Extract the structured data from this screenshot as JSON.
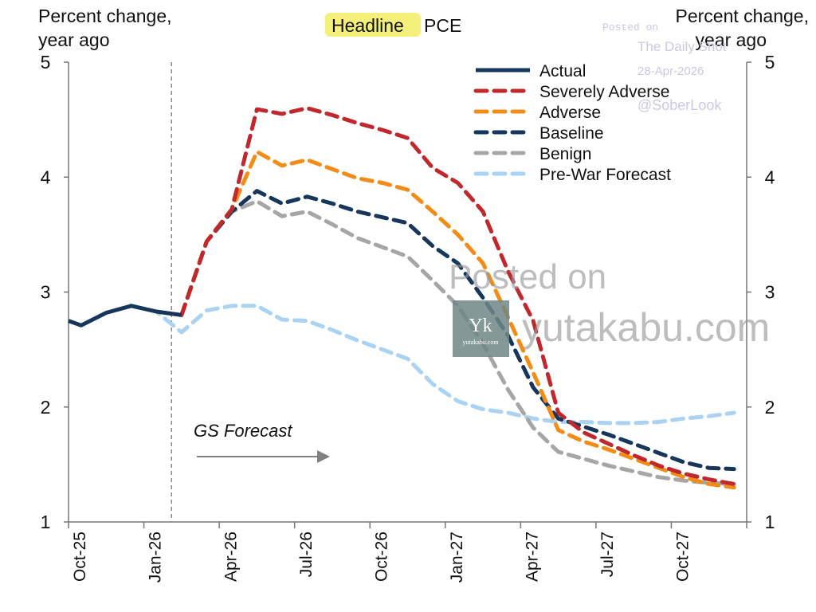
{
  "chart_data": {
    "type": "line",
    "title_highlight": "Headline",
    "title_rest": "PCE",
    "left_ylabel": [
      "Percent change,",
      "year ago"
    ],
    "right_ylabel": [
      "Percent change,",
      "year ago"
    ],
    "ylim": [
      1,
      5
    ],
    "yticks": [
      "1",
      "2",
      "3",
      "4",
      "5"
    ],
    "xlim_months_from_oct25": [
      0,
      27
    ],
    "xticks": [
      "Oct-25",
      "Jan-26",
      "Apr-26",
      "Jul-26",
      "Oct-26",
      "Jan-27",
      "Apr-27",
      "Jul-27",
      "Oct-27"
    ],
    "forecast_start_month": 4.1,
    "annotation": "GS Forecast",
    "series": [
      {
        "name": "Pre-War Forecast",
        "color": "#a9d2f3",
        "dash": true,
        "x": [
          2.5,
          3.5,
          4.5,
          5.5,
          6.5,
          7.5,
          8.5,
          9.5,
          10.5,
          11.5,
          12.5,
          13.5,
          14.5,
          15.5,
          16.5,
          17.5,
          18.5,
          19.5,
          20.5,
          21.5,
          22.5,
          23.5,
          24.5,
          25.5,
          26.5
        ],
        "y": [
          2.88,
          2.83,
          2.65,
          2.84,
          2.88,
          2.88,
          2.76,
          2.75,
          2.67,
          2.58,
          2.5,
          2.42,
          2.2,
          2.05,
          1.98,
          1.95,
          1.9,
          1.87,
          1.87,
          1.86,
          1.86,
          1.87,
          1.9,
          1.92,
          1.95
        ]
      },
      {
        "name": "Benign",
        "color": "#a6a6a6",
        "dash": true,
        "x": [
          4.5,
          5.5,
          6.5,
          7.5,
          8.5,
          9.5,
          10.5,
          11.5,
          12.5,
          13.5,
          14.5,
          15.5,
          16.5,
          17.5,
          18.5,
          19.5,
          20.5,
          21.5,
          22.5,
          23.5,
          24.5,
          25.5,
          26.5
        ],
        "y": [
          2.8,
          3.44,
          3.7,
          3.79,
          3.66,
          3.7,
          3.59,
          3.47,
          3.39,
          3.31,
          3.1,
          2.88,
          2.55,
          2.15,
          1.82,
          1.61,
          1.55,
          1.49,
          1.44,
          1.39,
          1.36,
          1.34,
          1.33
        ]
      },
      {
        "name": "Baseline",
        "color": "#16365c",
        "dash": true,
        "x": [
          4.5,
          5.5,
          6.5,
          7.5,
          8.5,
          9.5,
          10.5,
          11.5,
          12.5,
          13.5,
          14.5,
          15.5,
          16.5,
          17.5,
          18.5,
          19.5,
          20.5,
          21.5,
          22.5,
          23.5,
          24.5,
          25.5,
          26.5
        ],
        "y": [
          2.8,
          3.44,
          3.7,
          3.88,
          3.77,
          3.83,
          3.77,
          3.7,
          3.65,
          3.6,
          3.4,
          3.25,
          2.95,
          2.62,
          2.17,
          1.9,
          1.83,
          1.76,
          1.68,
          1.6,
          1.52,
          1.47,
          1.46
        ]
      },
      {
        "name": "Adverse",
        "color": "#f28c16",
        "dash": true,
        "x": [
          4.5,
          5.5,
          6.5,
          7.5,
          8.5,
          9.5,
          10.5,
          11.5,
          12.5,
          13.5,
          14.5,
          15.5,
          16.5,
          17.5,
          18.5,
          19.5,
          20.5,
          21.5,
          22.5,
          23.5,
          24.5,
          25.5,
          26.5
        ],
        "y": [
          2.8,
          3.44,
          3.72,
          4.22,
          4.1,
          4.15,
          4.07,
          3.99,
          3.95,
          3.89,
          3.7,
          3.5,
          3.25,
          2.78,
          2.3,
          1.8,
          1.7,
          1.63,
          1.55,
          1.47,
          1.39,
          1.33,
          1.3
        ]
      },
      {
        "name": "Severely Adverse",
        "color": "#c0282d",
        "dash": true,
        "x": [
          4.5,
          5.5,
          6.5,
          7.5,
          8.5,
          9.5,
          10.5,
          11.5,
          12.5,
          13.5,
          14.5,
          15.5,
          16.5,
          17.5,
          18.5,
          19.5,
          20.5,
          21.5,
          22.5,
          23.5,
          24.5,
          25.5,
          26.5
        ],
        "y": [
          2.8,
          3.44,
          3.72,
          4.59,
          4.55,
          4.6,
          4.54,
          4.47,
          4.41,
          4.34,
          4.08,
          3.95,
          3.7,
          3.18,
          2.75,
          1.95,
          1.78,
          1.68,
          1.58,
          1.49,
          1.42,
          1.37,
          1.33
        ]
      },
      {
        "name": "Actual",
        "color": "#16365c",
        "dash": false,
        "x": [
          0,
          0.5,
          1.5,
          2.5,
          3.5,
          4.5
        ],
        "y": [
          2.75,
          2.71,
          2.82,
          2.88,
          2.83,
          2.8
        ]
      }
    ],
    "legend_order": [
      "Actual",
      "Severely Adverse",
      "Adverse",
      "Baseline",
      "Benign",
      "Pre-War Forecast"
    ],
    "legend_placement": "top-right"
  },
  "watermarks": {
    "main": [
      "Posted on",
      "yutakabu.com"
    ],
    "logo_letter": "Yk",
    "logo_text": "yutakabu.com",
    "source": [
      "Posted on",
      "The Daily Shot",
      "28-Apr-2026",
      "@SoberLook"
    ]
  }
}
